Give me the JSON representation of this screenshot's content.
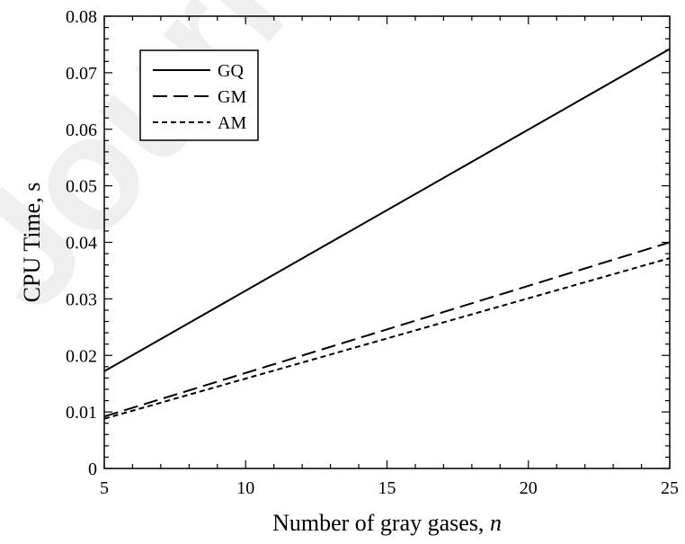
{
  "chart_data": {
    "type": "line",
    "title": "",
    "xlabel": "Number of gray gases, n",
    "xlabel_main": "Number of gray gases, ",
    "xlabel_italic": "n",
    "ylabel": "CPU Time, s",
    "xlim": [
      5,
      25
    ],
    "ylim": [
      0,
      0.08
    ],
    "xticks": [
      "5",
      "10",
      "15",
      "20",
      "25"
    ],
    "yticks": [
      "0",
      "0.01",
      "0.02",
      "0.03",
      "0.04",
      "0.05",
      "0.06",
      "0.07",
      "0.08"
    ],
    "grid": false,
    "legend_position": "top-left",
    "series": [
      {
        "name": "GQ",
        "style": "solid",
        "x": [
          5,
          25
        ],
        "y": [
          0.0172,
          0.0742
        ]
      },
      {
        "name": "GM",
        "style": "dashed",
        "x": [
          5,
          25
        ],
        "y": [
          0.0092,
          0.04
        ]
      },
      {
        "name": "AM",
        "style": "dotted",
        "x": [
          5,
          25
        ],
        "y": [
          0.0088,
          0.0372
        ]
      }
    ]
  },
  "watermark": {
    "text": "Journal",
    "color": "#dcdcdc"
  },
  "colors": {
    "line": "#000000",
    "background": "#ffffff"
  }
}
